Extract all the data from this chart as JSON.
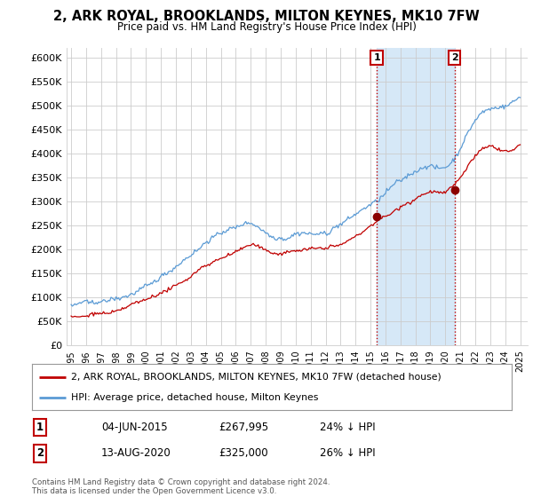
{
  "title": "2, ARK ROYAL, BROOKLANDS, MILTON KEYNES, MK10 7FW",
  "subtitle": "Price paid vs. HM Land Registry's House Price Index (HPI)",
  "legend_line1": "2, ARK ROYAL, BROOKLANDS, MILTON KEYNES, MK10 7FW (detached house)",
  "legend_line2": "HPI: Average price, detached house, Milton Keynes",
  "sale1_date": "04-JUN-2015",
  "sale1_price": 267995,
  "sale1_label": "24% ↓ HPI",
  "sale2_date": "13-AUG-2020",
  "sale2_price": 325000,
  "sale2_label": "26% ↓ HPI",
  "footer": "Contains HM Land Registry data © Crown copyright and database right 2024.\nThis data is licensed under the Open Government Licence v3.0.",
  "hpi_color": "#5b9bd5",
  "price_color": "#c00000",
  "dot_color": "#8b0000",
  "marker_box_color": "#c00000",
  "shade_color": "#d6e8f7",
  "vline_color": "#c00000",
  "ylim": [
    0,
    620000
  ],
  "yticks": [
    0,
    50000,
    100000,
    150000,
    200000,
    250000,
    300000,
    350000,
    400000,
    450000,
    500000,
    550000,
    600000
  ],
  "background_color": "#ffffff",
  "grid_color": "#cccccc",
  "sale1_x": 2015.42,
  "sale2_x": 2020.62
}
